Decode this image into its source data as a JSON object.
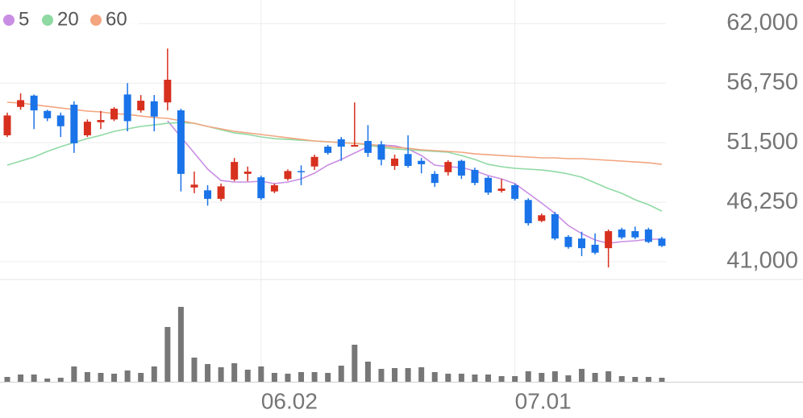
{
  "chart_data": {
    "type": "candlestick",
    "categories": [
      null,
      null,
      null,
      null,
      null,
      null,
      null,
      null,
      null,
      null,
      null,
      null,
      null,
      null,
      null,
      null,
      null,
      null,
      null,
      "06.02",
      null,
      null,
      null,
      null,
      null,
      null,
      null,
      null,
      null,
      null,
      null,
      null,
      null,
      null,
      null,
      null,
      null,
      null,
      "07.01",
      null,
      null,
      null,
      null,
      null,
      null,
      null,
      null,
      null,
      null,
      null
    ],
    "open": [
      52150,
      54650,
      55650,
      54300,
      53900,
      54850,
      52150,
      53300,
      53550,
      55750,
      54350,
      55150,
      55050,
      54350,
      47550,
      47300,
      46550,
      48250,
      48750,
      48450,
      47200,
      48300,
      49000,
      49400,
      51150,
      51800,
      51150,
      51650,
      51350,
      49450,
      50500,
      49900,
      48750,
      48900,
      49900,
      49100,
      48400,
      47250,
      47750,
      46450,
      44600,
      45200,
      43200,
      43050,
      42500,
      42200,
      43850,
      43700,
      43850,
      43050
    ],
    "high": [
      54150,
      55850,
      55750,
      54400,
      54150,
      55150,
      53550,
      54300,
      54650,
      56750,
      55700,
      55700,
      59800,
      54500,
      48950,
      47750,
      47900,
      50150,
      49400,
      48600,
      47900,
      49150,
      49500,
      50450,
      51300,
      52000,
      55050,
      53050,
      51650,
      50450,
      52150,
      50150,
      49000,
      49950,
      50000,
      49300,
      48550,
      48300,
      47900,
      46600,
      45250,
      45400,
      43350,
      43650,
      43500,
      43850,
      44000,
      44100,
      44000,
      43200
    ],
    "low": [
      52000,
      54400,
      52700,
      53400,
      52000,
      50600,
      52000,
      52700,
      53400,
      52500,
      54150,
      52500,
      54350,
      47200,
      47050,
      45950,
      46350,
      48100,
      48100,
      46450,
      47050,
      48150,
      47750,
      49100,
      50450,
      49900,
      51150,
      50250,
      49500,
      49100,
      49300,
      48800,
      47600,
      48600,
      48300,
      47750,
      46900,
      47100,
      46400,
      44200,
      44500,
      42900,
      42150,
      41500,
      41650,
      40500,
      43000,
      43000,
      42650,
      42300
    ],
    "close": [
      53900,
      55250,
      54350,
      53650,
      52950,
      51450,
      53350,
      53500,
      54500,
      53400,
      55200,
      53800,
      57050,
      48750,
      47800,
      46550,
      47650,
      49800,
      48950,
      46600,
      47750,
      49000,
      48900,
      50250,
      50600,
      51150,
      51300,
      50600,
      50000,
      50100,
      49450,
      49600,
      47950,
      49800,
      48600,
      47950,
      47100,
      47450,
      46550,
      44400,
      45100,
      43050,
      42300,
      42200,
      41800,
      43700,
      43150,
      43150,
      42750,
      42400
    ],
    "volume": [
      6,
      9,
      9,
      4,
      5,
      19,
      12,
      11,
      10,
      14,
      11,
      19,
      68,
      93,
      30,
      22,
      18,
      23,
      15,
      19,
      11,
      10,
      12,
      12,
      11,
      20,
      46,
      25,
      16,
      17,
      17,
      18,
      12,
      10,
      10,
      9,
      9,
      7,
      7,
      13,
      11,
      13,
      8,
      16,
      11,
      13,
      7,
      6,
      6,
      5
    ],
    "series": [
      {
        "name": "5",
        "color": "#c98ee3",
        "values": [
          null,
          null,
          null,
          null,
          null,
          null,
          null,
          null,
          null,
          null,
          null,
          null,
          53430,
          52010,
          50590,
          49170,
          48170,
          48030,
          48030,
          48100,
          47890,
          48030,
          48310,
          48810,
          49520,
          50020,
          50590,
          51150,
          51300,
          51220,
          50940,
          50370,
          49520,
          49380,
          49310,
          49020,
          48600,
          48310,
          47890,
          47040,
          46180,
          45260,
          44200,
          43490,
          42920,
          42630,
          42780,
          42850,
          42990,
          42990
        ]
      },
      {
        "name": "20",
        "color": "#8fd9a3",
        "values": [
          49520,
          49880,
          50230,
          50730,
          51150,
          51510,
          51860,
          52150,
          52500,
          52720,
          52930,
          53070,
          53210,
          53280,
          53210,
          52930,
          52640,
          52360,
          52220,
          52010,
          51860,
          51790,
          51720,
          51650,
          51580,
          51510,
          51440,
          51300,
          51080,
          50940,
          50870,
          50800,
          50730,
          50660,
          50370,
          50020,
          49590,
          49380,
          49240,
          49170,
          49090,
          48950,
          48740,
          48460,
          47960,
          47460,
          47040,
          46470,
          46040,
          45470
        ]
      },
      {
        "name": "60",
        "color": "#f2a57f",
        "values": [
          55060,
          54990,
          54850,
          54700,
          54560,
          54420,
          54280,
          54210,
          54060,
          53990,
          53850,
          53710,
          53640,
          53430,
          53210,
          52930,
          52720,
          52500,
          52360,
          52220,
          52080,
          51930,
          51790,
          51650,
          51580,
          51510,
          51440,
          51370,
          51220,
          51080,
          51010,
          50870,
          50800,
          50730,
          50660,
          50510,
          50440,
          50370,
          50300,
          50230,
          50160,
          50160,
          50090,
          50090,
          50020,
          49950,
          49880,
          49800,
          49730,
          49590
        ]
      }
    ],
    "up_color": "#d7301f",
    "down_color": "#1a73e8",
    "volume_color": "#777777",
    "ylim": [
      39440,
      64080
    ],
    "yticks": [
      {
        "value": 62000,
        "label": "62,000"
      },
      {
        "value": 56750,
        "label": "56,750"
      },
      {
        "value": 51500,
        "label": "51,500"
      },
      {
        "value": 46250,
        "label": "46,250"
      },
      {
        "value": 41000,
        "label": "41,000"
      }
    ],
    "grid": true
  }
}
